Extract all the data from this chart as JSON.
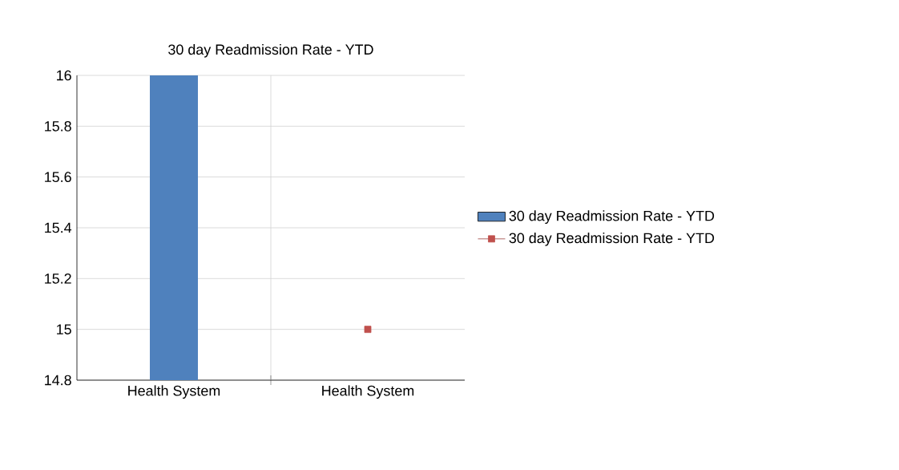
{
  "chart_data": {
    "type": "bar",
    "title": "30 day Readmission Rate - YTD",
    "categories": [
      "Health System",
      "Health System"
    ],
    "series": [
      {
        "name": "30 day Readmission Rate - YTD",
        "type": "bar",
        "color": "#4f81bd",
        "values": [
          16,
          null
        ]
      },
      {
        "name": "30 day Readmission Rate - YTD",
        "type": "line",
        "color": "#c0504d",
        "values": [
          null,
          15
        ],
        "marker": "square"
      }
    ],
    "ylim": [
      14.8,
      16
    ],
    "yticks": [
      14.8,
      15,
      15.2,
      15.4,
      15.6,
      15.8,
      16
    ],
    "grid": true,
    "legend": "right"
  }
}
